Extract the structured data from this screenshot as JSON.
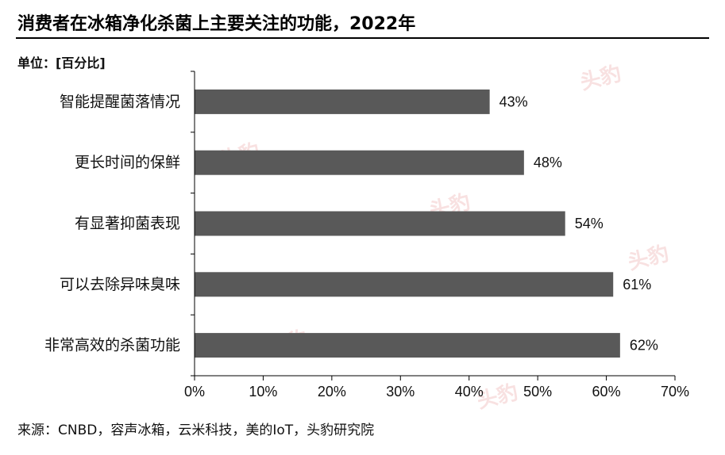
{
  "header": {
    "title": "消费者在冰箱净化杀菌上主要关注的功能，2022年",
    "unit": "单位：[百分比]"
  },
  "footer": {
    "source": "来源：CNBD，容声冰箱，云米科技，美的IoT，头豹研究院"
  },
  "watermark": {
    "text": "头豹",
    "color": "#f3c9c9"
  },
  "chart_data": {
    "type": "bar",
    "orientation": "horizontal",
    "categories": [
      "智能提醒菌落情况",
      "更长时间的保鲜",
      "有显著抑菌表现",
      "可以去除异味臭味",
      "非常高效的杀菌功能"
    ],
    "values": [
      43,
      48,
      54,
      61,
      62
    ],
    "value_labels": [
      "43%",
      "48%",
      "54%",
      "61%",
      "62%"
    ],
    "xlim": [
      0,
      70
    ],
    "xticks": [
      0,
      10,
      20,
      30,
      40,
      50,
      60,
      70
    ],
    "xtick_labels": [
      "0%",
      "10%",
      "20%",
      "30%",
      "40%",
      "50%",
      "60%",
      "70%"
    ],
    "bar_color": "#595959",
    "grid": false,
    "legend": "none"
  }
}
